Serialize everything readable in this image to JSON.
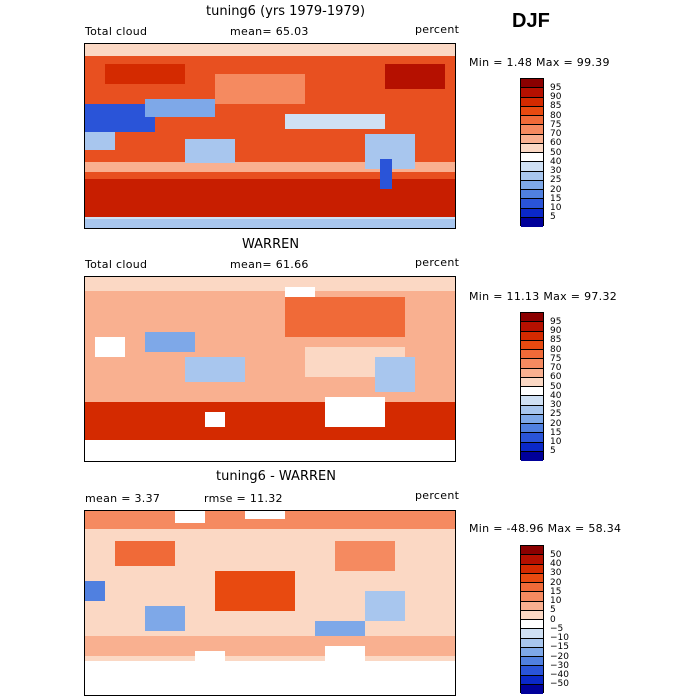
{
  "season": "DJF",
  "panels": [
    {
      "title": "tuning6 (yrs 1979-1979)",
      "left": "Total cloud",
      "center": "mean=  65.03",
      "right": "percent",
      "minmax": "Min =    1.48 Max =  99.39",
      "colorbar": {
        "labels": [
          "95",
          "90",
          "85",
          "80",
          "75",
          "70",
          "60",
          "50",
          "40",
          "30",
          "25",
          "20",
          "15",
          "10",
          "5"
        ],
        "colors": [
          "#8b0000",
          "#b51000",
          "#d42a00",
          "#e84a10",
          "#f06a38",
          "#f58a60",
          "#f9b090",
          "#fbd8c4",
          "#ffffff",
          "#cfe0f4",
          "#a8c6ee",
          "#7ea8e8",
          "#5080e0",
          "#2a54d8",
          "#0a28c8",
          "#00009a"
        ]
      }
    },
    {
      "title": "WARREN",
      "left": "Total cloud",
      "center": "mean=  61.66",
      "right": "percent",
      "minmax": "Min =  11.13 Max =  97.32",
      "colorbar": {
        "labels": [
          "95",
          "90",
          "85",
          "80",
          "75",
          "70",
          "60",
          "50",
          "40",
          "30",
          "25",
          "20",
          "15",
          "10",
          "5"
        ],
        "colors": [
          "#8b0000",
          "#b51000",
          "#d42a00",
          "#e84a10",
          "#f06a38",
          "#f58a60",
          "#f9b090",
          "#fbd8c4",
          "#ffffff",
          "#cfe0f4",
          "#a8c6ee",
          "#7ea8e8",
          "#5080e0",
          "#2a54d8",
          "#0a28c8",
          "#00009a"
        ]
      }
    },
    {
      "title": "tuning6 - WARREN",
      "left": "mean =    3.37",
      "center": "rmse =  11.32",
      "right": "percent",
      "minmax": "Min = -48.96 Max =  58.34",
      "colorbar": {
        "labels": [
          "50",
          "40",
          "30",
          "20",
          "15",
          "10",
          "5",
          "0",
          "−5",
          "−10",
          "−15",
          "−20",
          "−30",
          "−40",
          "−50"
        ],
        "colors": [
          "#8b0000",
          "#b51000",
          "#d42a00",
          "#e84a10",
          "#f06a38",
          "#f58a60",
          "#f9b090",
          "#fbd8c4",
          "#ffffff",
          "#cfe0f4",
          "#a8c6ee",
          "#7ea8e8",
          "#5080e0",
          "#2a54d8",
          "#0a28c8",
          "#00009a"
        ]
      }
    }
  ],
  "chart_data": [
    {
      "type": "heatmap",
      "title": "tuning6 (yrs 1979-1979)",
      "variable": "Total cloud",
      "units": "percent",
      "mean": 65.03,
      "min": 1.48,
      "max": 99.39,
      "contour_levels": [
        5,
        10,
        15,
        20,
        25,
        30,
        40,
        50,
        60,
        70,
        75,
        80,
        85,
        90,
        95
      ]
    },
    {
      "type": "heatmap",
      "title": "WARREN",
      "variable": "Total cloud",
      "units": "percent",
      "mean": 61.66,
      "min": 11.13,
      "max": 97.32,
      "contour_levels": [
        5,
        10,
        15,
        20,
        25,
        30,
        40,
        50,
        60,
        70,
        75,
        80,
        85,
        90,
        95
      ]
    },
    {
      "type": "heatmap",
      "title": "tuning6 - WARREN",
      "units": "percent",
      "mean": 3.37,
      "rmse": 11.32,
      "min": -48.96,
      "max": 58.34,
      "contour_levels": [
        -50,
        -40,
        -30,
        -20,
        -15,
        -10,
        -5,
        0,
        5,
        10,
        15,
        20,
        30,
        40,
        50
      ]
    }
  ]
}
